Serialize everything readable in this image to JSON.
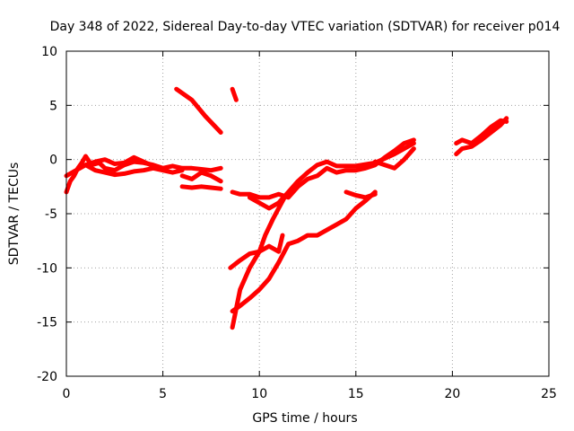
{
  "chart_data": {
    "type": "scatter",
    "title": "Day 348 of 2022, Sidereal Day-to-day VTEC variation (SDTVAR) for receiver p014",
    "xlabel": "GPS time / hours",
    "ylabel": "SDTVAR / TECUs",
    "xlim": [
      0,
      25
    ],
    "ylim": [
      -20,
      10
    ],
    "xticks": [
      0,
      5,
      10,
      15,
      20,
      25
    ],
    "yticks": [
      -20,
      -15,
      -10,
      -5,
      0,
      5,
      10
    ],
    "grid": true,
    "color": "#ff0000",
    "tracks": [
      [
        [
          0.0,
          -3.0
        ],
        [
          0.2,
          -2.0
        ],
        [
          0.4,
          -1.5
        ],
        [
          0.6,
          -0.8
        ],
        [
          0.8,
          -0.3
        ],
        [
          1.0,
          0.3
        ],
        [
          1.3,
          -0.5
        ],
        [
          1.7,
          -0.3
        ],
        [
          2.0,
          -0.8
        ],
        [
          2.5,
          -1.0
        ],
        [
          3.0,
          -0.5
        ],
        [
          3.5,
          -0.2
        ],
        [
          4.0,
          -0.3
        ],
        [
          4.5,
          -0.5
        ],
        [
          5.0,
          -0.8
        ],
        [
          5.5,
          -0.6
        ],
        [
          6.0,
          -0.8
        ],
        [
          6.5,
          -0.8
        ],
        [
          7.0,
          -0.9
        ],
        [
          7.5,
          -1.0
        ],
        [
          8.0,
          -0.8
        ]
      ],
      [
        [
          0.0,
          -1.5
        ],
        [
          0.5,
          -1.0
        ],
        [
          1.0,
          -0.5
        ],
        [
          1.5,
          -1.0
        ],
        [
          2.0,
          -1.2
        ],
        [
          2.5,
          -1.4
        ],
        [
          3.0,
          -1.3
        ],
        [
          3.5,
          -1.1
        ],
        [
          4.0,
          -1.0
        ],
        [
          4.5,
          -0.8
        ],
        [
          5.0,
          -1.0
        ],
        [
          5.5,
          -1.2
        ],
        [
          6.0,
          -1.0
        ]
      ],
      [
        [
          1.0,
          -0.5
        ],
        [
          1.5,
          -0.2
        ],
        [
          2.0,
          0.0
        ],
        [
          2.5,
          -0.4
        ],
        [
          3.0,
          -0.3
        ],
        [
          3.5,
          0.2
        ],
        [
          4.0,
          -0.2
        ],
        [
          4.5,
          -0.6
        ]
      ],
      [
        [
          6.0,
          -1.5
        ],
        [
          6.5,
          -1.8
        ],
        [
          7.0,
          -1.2
        ],
        [
          7.5,
          -1.5
        ],
        [
          8.0,
          -2.0
        ]
      ],
      [
        [
          6.0,
          -2.5
        ],
        [
          6.5,
          -2.6
        ],
        [
          7.0,
          -2.5
        ],
        [
          7.5,
          -2.6
        ],
        [
          8.0,
          -2.7
        ]
      ],
      [
        [
          5.7,
          6.5
        ],
        [
          6.5,
          5.5
        ],
        [
          7.2,
          4.0
        ],
        [
          8.0,
          2.5
        ]
      ],
      [
        [
          8.6,
          6.5
        ],
        [
          8.8,
          5.5
        ]
      ],
      [
        [
          8.6,
          -3.0
        ],
        [
          9.0,
          -3.2
        ],
        [
          9.5,
          -3.2
        ],
        [
          10.0,
          -3.5
        ],
        [
          10.5,
          -3.5
        ],
        [
          11.0,
          -3.2
        ],
        [
          11.5,
          -3.5
        ],
        [
          12.0,
          -2.5
        ],
        [
          12.5,
          -1.8
        ],
        [
          13.0,
          -1.5
        ],
        [
          13.5,
          -0.8
        ],
        [
          14.0,
          -1.2
        ],
        [
          14.5,
          -1.0
        ],
        [
          15.0,
          -1.0
        ],
        [
          15.5,
          -0.8
        ],
        [
          16.0,
          -0.5
        ],
        [
          16.5,
          0.2
        ],
        [
          17.0,
          0.8
        ],
        [
          17.5,
          1.5
        ],
        [
          18.0,
          1.8
        ]
      ],
      [
        [
          9.5,
          -3.5
        ],
        [
          10.0,
          -4.0
        ],
        [
          10.5,
          -4.5
        ],
        [
          11.0,
          -4.0
        ],
        [
          11.5,
          -3.0
        ],
        [
          12.0,
          -2.0
        ],
        [
          12.5,
          -1.2
        ],
        [
          13.0,
          -0.5
        ],
        [
          13.5,
          -0.2
        ],
        [
          14.0,
          -0.6
        ],
        [
          15.0,
          -0.6
        ],
        [
          16.0,
          -0.3
        ],
        [
          17.0,
          0.5
        ],
        [
          17.5,
          1.0
        ],
        [
          18.0,
          1.5
        ]
      ],
      [
        [
          16.0,
          -0.2
        ],
        [
          16.5,
          -0.5
        ],
        [
          17.0,
          -0.8
        ],
        [
          17.5,
          0.0
        ],
        [
          18.0,
          1.0
        ]
      ],
      [
        [
          8.5,
          -10.0
        ],
        [
          9.0,
          -9.3
        ],
        [
          9.5,
          -8.7
        ],
        [
          10.0,
          -8.5
        ],
        [
          10.3,
          -7.0
        ],
        [
          10.7,
          -5.5
        ],
        [
          11.0,
          -4.5
        ],
        [
          11.3,
          -3.5
        ]
      ],
      [
        [
          8.6,
          -15.5
        ],
        [
          9.0,
          -12.0
        ],
        [
          9.5,
          -10.0
        ],
        [
          10.0,
          -8.5
        ],
        [
          10.5,
          -8.0
        ],
        [
          11.0,
          -8.5
        ],
        [
          11.2,
          -7.0
        ]
      ],
      [
        [
          8.6,
          -14.0
        ],
        [
          9.0,
          -13.5
        ],
        [
          9.5,
          -12.8
        ],
        [
          10.0,
          -12.0
        ],
        [
          10.5,
          -11.0
        ],
        [
          11.0,
          -9.5
        ],
        [
          11.5,
          -7.8
        ],
        [
          12.0,
          -7.5
        ],
        [
          12.5,
          -7.0
        ],
        [
          13.0,
          -7.0
        ],
        [
          13.5,
          -6.5
        ],
        [
          14.0,
          -6.0
        ],
        [
          14.5,
          -5.5
        ],
        [
          15.0,
          -4.5
        ],
        [
          15.5,
          -3.8
        ],
        [
          16.0,
          -3.0
        ]
      ],
      [
        [
          14.5,
          -3.0
        ],
        [
          15.0,
          -3.3
        ],
        [
          15.5,
          -3.5
        ],
        [
          16.0,
          -3.2
        ]
      ],
      [
        [
          20.2,
          0.5
        ],
        [
          20.5,
          1.0
        ],
        [
          21.0,
          1.2
        ],
        [
          21.5,
          1.8
        ],
        [
          22.0,
          2.5
        ],
        [
          22.5,
          3.2
        ],
        [
          22.8,
          3.8
        ]
      ],
      [
        [
          20.2,
          1.5
        ],
        [
          20.5,
          1.8
        ],
        [
          21.0,
          1.5
        ],
        [
          21.5,
          2.2
        ],
        [
          22.0,
          3.0
        ],
        [
          22.5,
          3.6
        ],
        [
          22.8,
          3.5
        ]
      ]
    ]
  }
}
